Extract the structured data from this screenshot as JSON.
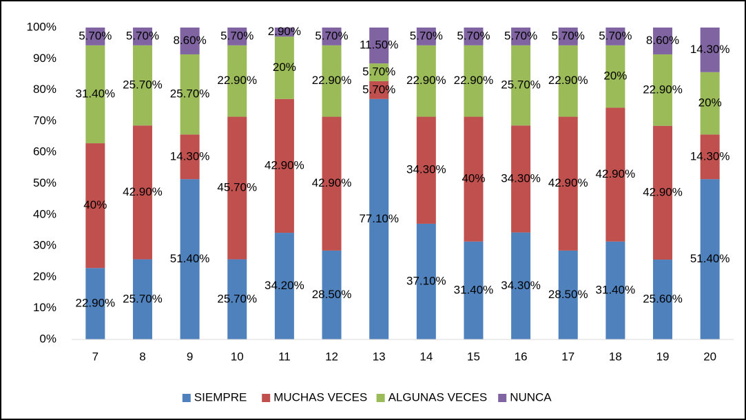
{
  "chart_data": {
    "type": "stacked_bar",
    "categories": [
      "7",
      "8",
      "9",
      "10",
      "11",
      "12",
      "13",
      "14",
      "15",
      "16",
      "17",
      "18",
      "19",
      "20"
    ],
    "series": [
      {
        "name": "SIEMPRE",
        "color": "#4f81bd",
        "values": [
          22.9,
          25.7,
          51.4,
          25.7,
          34.2,
          28.5,
          77.1,
          37.1,
          31.4,
          34.3,
          28.5,
          31.4,
          25.6,
          51.4
        ],
        "value_labels": [
          "22.90%",
          "25.70%",
          "51.40%",
          "25.70%",
          "34.20%",
          "28.50%",
          "77.10%",
          "37.10%",
          "31.40%",
          "34.30%",
          "28.50%",
          "31.40%",
          "25.60%",
          "51.40%"
        ]
      },
      {
        "name": "MUCHAS VECES",
        "color": "#c0504d",
        "values": [
          40,
          42.9,
          14.3,
          45.7,
          42.9,
          42.9,
          5.7,
          34.3,
          40,
          34.3,
          42.9,
          42.9,
          42.9,
          14.3
        ],
        "value_labels": [
          "40%",
          "42.90%",
          "14.30%",
          "45.70%",
          "42.90%",
          "42.90%",
          "5.70%",
          "34.30%",
          "40%",
          "34.30%",
          "42.90%",
          "42.90%",
          "42.90%",
          "14.30%"
        ]
      },
      {
        "name": "ALGUNAS VECES",
        "color": "#9bbb59",
        "values": [
          31.4,
          25.7,
          25.7,
          22.9,
          20,
          22.9,
          5.7,
          22.9,
          22.9,
          25.7,
          22.9,
          20,
          22.9,
          20
        ],
        "value_labels": [
          "31.40%",
          "25.70%",
          "25.70%",
          "22.90%",
          "20%",
          "22.90%",
          "5.70%",
          "22.90%",
          "22.90%",
          "25.70%",
          "22.90%",
          "20%",
          "22.90%",
          "20%"
        ]
      },
      {
        "name": "NUNCA",
        "color": "#8064a2",
        "values": [
          5.7,
          5.7,
          8.6,
          5.7,
          2.9,
          5.7,
          11.5,
          5.7,
          5.7,
          5.7,
          5.7,
          5.7,
          8.6,
          14.3
        ],
        "value_labels": [
          "5.70%",
          "5.70%",
          "8.60%",
          "5.70%",
          "2.90%",
          "5.70%",
          "11.50%",
          "5.70%",
          "5.70%",
          "5.70%",
          "5.70%",
          "5.70%",
          "8.60%",
          "14.30%"
        ]
      }
    ],
    "ylim": [
      0,
      100
    ],
    "yticks": [
      {
        "value": 0,
        "label": "0%"
      },
      {
        "value": 10,
        "label": "10%"
      },
      {
        "value": 20,
        "label": "20%"
      },
      {
        "value": 30,
        "label": "30%"
      },
      {
        "value": 40,
        "label": "40%"
      },
      {
        "value": 50,
        "label": "50%"
      },
      {
        "value": 60,
        "label": "60%"
      },
      {
        "value": 70,
        "label": "70%"
      },
      {
        "value": 80,
        "label": "80%"
      },
      {
        "value": 90,
        "label": "90%"
      },
      {
        "value": 100,
        "label": "100%"
      }
    ],
    "grid": false,
    "legend": "bottom"
  }
}
